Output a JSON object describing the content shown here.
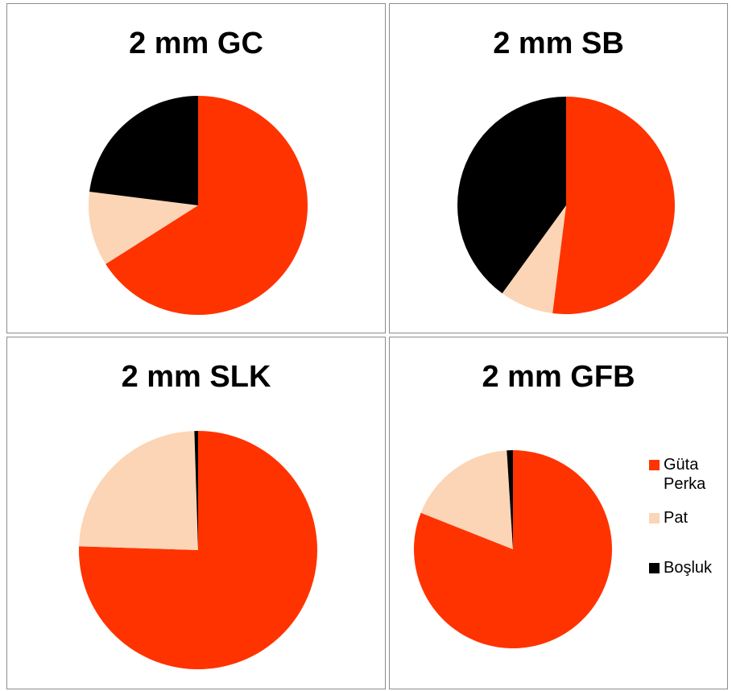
{
  "chart_data": [
    {
      "type": "pie",
      "title": "2 mm GC",
      "categories": [
        "Güta Perka",
        "Pat",
        "Boşluk"
      ],
      "values": [
        66,
        11,
        23
      ]
    },
    {
      "type": "pie",
      "title": "2 mm SB",
      "categories": [
        "Güta Perka",
        "Pat",
        "Boşluk"
      ],
      "values": [
        52,
        8,
        40
      ]
    },
    {
      "type": "pie",
      "title": "2 mm SLK",
      "categories": [
        "Güta Perka",
        "Pat",
        "Boşluk"
      ],
      "values": [
        75.5,
        24,
        0.5
      ]
    },
    {
      "type": "pie",
      "title": "2 mm GFB",
      "categories": [
        "Güta Perka",
        "Pat",
        "Boşluk"
      ],
      "values": [
        81,
        18,
        1
      ]
    }
  ],
  "legend": {
    "items": [
      {
        "label_line1": "Güta",
        "label_line2": "Perka",
        "color": "#ff3300"
      },
      {
        "label_line1": "Pat",
        "label_line2": "",
        "color": "#fbd5b5"
      },
      {
        "label_line1": "Boşluk",
        "label_line2": "",
        "color": "#000000"
      }
    ]
  },
  "colors": [
    "#ff3300",
    "#fbd5b5",
    "#000000"
  ]
}
